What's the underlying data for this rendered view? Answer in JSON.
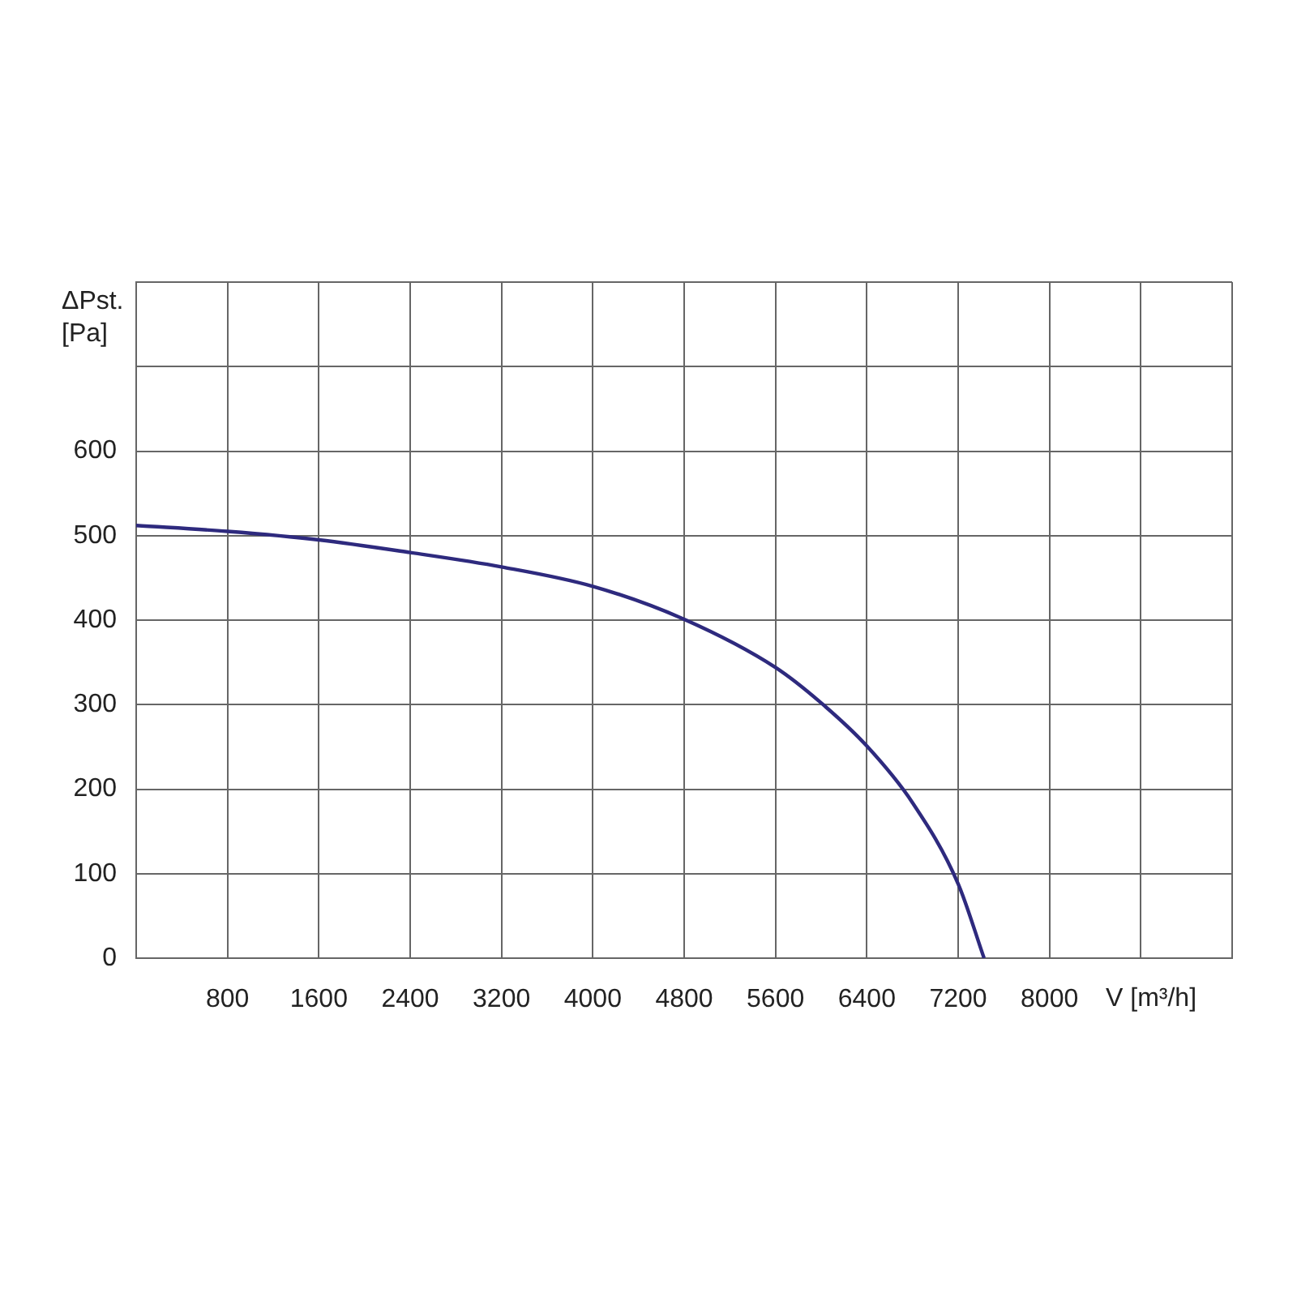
{
  "chart_data": {
    "type": "line",
    "xlabel": "V [m³/h]",
    "ylabel": "ΔPst. [Pa]",
    "x": [
      0,
      800,
      1600,
      2400,
      3200,
      4000,
      4800,
      5600,
      6000,
      6400,
      6800,
      7200,
      7427
    ],
    "series": [
      {
        "color": "#2e2a7e",
        "values": [
          512,
          505,
          495,
          480,
          463,
          440,
          401,
          344,
          302,
          251,
          184,
          88,
          0
        ]
      }
    ],
    "xlim": [
      0,
      9600
    ],
    "ylim": [
      0,
      800
    ],
    "xticks": [
      {
        "value": 0,
        "label": null
      },
      800,
      1600,
      2400,
      3200,
      4000,
      4800,
      5600,
      6400,
      7200,
      8000,
      {
        "value": 8800,
        "label": null
      },
      {
        "value": 9600,
        "label": null
      }
    ],
    "yticks": [
      0,
      100,
      200,
      300,
      400,
      500,
      600,
      {
        "value": 700,
        "label": null
      },
      {
        "value": 800,
        "label": null
      }
    ],
    "grid": true,
    "legend": false,
    "marker": "none",
    "line_style": "solid"
  }
}
